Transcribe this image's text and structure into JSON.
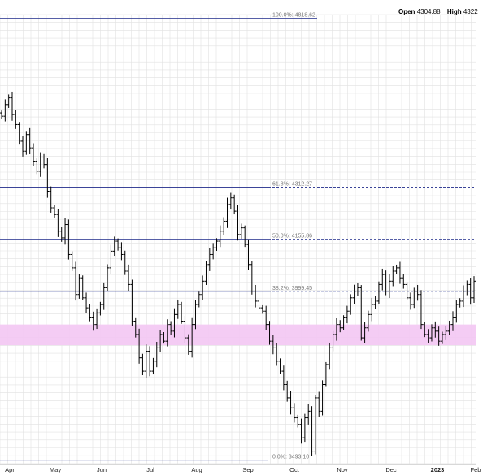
{
  "header": {
    "open_label": "Open",
    "open_value": "4304.88",
    "high_label": "High",
    "high_value": "4322"
  },
  "colors": {
    "fib_line": "#1f2a8a",
    "zone_fill": "#f3c6f3",
    "bar": "#000000",
    "grid": "#e1e1e1"
  },
  "chart_data": {
    "type": "ohlc",
    "x_labels": [
      "Apr",
      "May",
      "Jun",
      "Jul",
      "Aug",
      "Sep",
      "Oct",
      "Nov",
      "Dec",
      "2023",
      "Feb"
    ],
    "bold_x_label": "2023",
    "fib_levels": [
      {
        "label": "100.0%: 4818.62",
        "value": 4818.62,
        "style": "solid",
        "extent": "partial"
      },
      {
        "label": "61.8%: 4312.27",
        "value": 4312.27,
        "style": "dashed",
        "extent": "full"
      },
      {
        "label": "50.0%: 4155.86",
        "value": 4155.86,
        "style": "dashed",
        "extent": "full"
      },
      {
        "label": "38.2%: 3999.45",
        "value": 3999.45,
        "style": "dashed",
        "extent": "full"
      },
      {
        "label": "0.0%: 3493.10",
        "value": 3493.1,
        "style": "dashed",
        "extent": "full"
      }
    ],
    "zone": {
      "low": 3838,
      "high": 3900
    },
    "ylim": [
      3480,
      4830
    ],
    "grid": true,
    "series_close": [
      4525,
      4560,
      4580,
      4530,
      4500,
      4450,
      4420,
      4470,
      4430,
      4390,
      4360,
      4400,
      4380,
      4300,
      4250,
      4230,
      4180,
      4160,
      4200,
      4110,
      4070,
      3990,
      4040,
      3980,
      3950,
      3920,
      3900,
      3935,
      3960,
      4010,
      4070,
      4120,
      4150,
      4130,
      4110,
      4060,
      4020,
      3910,
      3870,
      3800,
      3760,
      3820,
      3760,
      3790,
      3830,
      3870,
      3850,
      3900,
      3880,
      3930,
      3960,
      3910,
      3860,
      3820,
      3900,
      3960,
      3990,
      4030,
      4080,
      4110,
      4130,
      4150,
      4180,
      4210,
      4260,
      4280,
      4240,
      4170,
      4190,
      4140,
      4080,
      4000,
      3970,
      3950,
      3940,
      3900,
      3850,
      3830,
      3790,
      3760,
      3720,
      3680,
      3650,
      3620,
      3600,
      3560,
      3620,
      3640,
      3520,
      3680,
      3640,
      3720,
      3780,
      3830,
      3870,
      3900,
      3890,
      3920,
      3940,
      3980,
      4000,
      4010,
      3860,
      3890,
      3930,
      3960,
      3970,
      4020,
      4050,
      4000,
      4030,
      4060,
      4070,
      4040,
      4020,
      3980,
      3960,
      4000,
      3990,
      3900,
      3870,
      3860,
      3890,
      3880,
      3850,
      3870,
      3880,
      3900,
      3920,
      3960,
      3970,
      4000,
      4020,
      3980,
      4030
    ]
  }
}
